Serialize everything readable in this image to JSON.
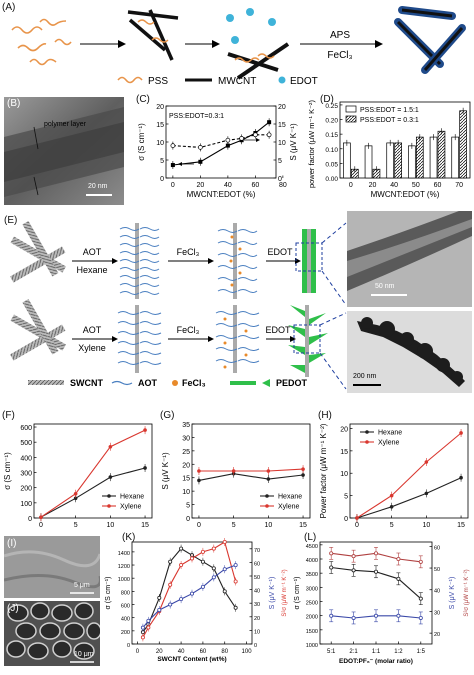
{
  "panel_labels": {
    "A": "(A)",
    "B": "(B)",
    "C": "(C)",
    "D": "(D)",
    "E": "(E)",
    "F": "(F)",
    "G": "(G)",
    "H": "(H)",
    "I": "(I)",
    "J": "(J)",
    "K": "(K)",
    "L": "(L)"
  },
  "panelA": {
    "arrow_top": "APS",
    "arrow_bottom": "FeCl₃",
    "legend": [
      "PSS",
      "MWCNT",
      "EDOT"
    ]
  },
  "panelB": {
    "layer_label": "polymer layer",
    "scale_bar": "20 nm"
  },
  "panelE": {
    "row1": {
      "step1": "AOT",
      "step1_solvent": "Hexane",
      "step2": "FeCl₃",
      "step3": "EDOT",
      "scale_bar": "50 nm"
    },
    "row2": {
      "step1": "AOT",
      "step1_solvent": "Xylene",
      "step2": "FeCl₃",
      "step3": "EDOT",
      "scale_bar": "200 nm"
    },
    "legend": [
      "SWCNT",
      "AOT",
      "FeCl₃",
      "PEDOT"
    ]
  },
  "panelI": {
    "scale_bar": "5 μm"
  },
  "panelJ": {
    "scale_bar": "10 μm"
  },
  "chart_data": [
    {
      "id": "C",
      "type": "line",
      "annotation": "PSS:EDOT=0.3:1",
      "xlabel": "MWCNT:EDOT (%)",
      "ylabel": "σ (S cm⁻¹)",
      "y2label": "S (μV K⁻¹)",
      "x_ticks": [
        0,
        20,
        40,
        60,
        80
      ],
      "y_ticks": [
        0,
        5,
        10,
        15,
        20
      ],
      "y2_ticks": [
        0,
        5,
        10,
        15,
        20
      ],
      "xlim": [
        -5,
        75
      ],
      "ylim": [
        0,
        20
      ],
      "y2lim": [
        0,
        20
      ],
      "series": [
        {
          "axis": "left",
          "style": "solid-filled",
          "x": [
            0,
            20,
            40,
            50,
            60,
            70
          ],
          "values": [
            3.6,
            4.5,
            9.0,
            10.5,
            12.5,
            15.5
          ]
        },
        {
          "axis": "right",
          "style": "dashed-open",
          "x": [
            0,
            20,
            40,
            50,
            60,
            70
          ],
          "values": [
            9.0,
            8.5,
            10.5,
            11.0,
            12.0,
            12.0
          ]
        }
      ]
    },
    {
      "id": "D",
      "type": "bar",
      "xlabel": "MWCNT:EDOT (%)",
      "ylabel": "power factor (μW m⁻¹ K⁻²)",
      "categories": [
        "0",
        "20",
        "40",
        "50",
        "60",
        "70"
      ],
      "y_ticks": [
        0.0,
        0.05,
        0.1,
        0.15,
        0.2,
        0.25
      ],
      "ylim": [
        0,
        0.26
      ],
      "series": [
        {
          "name": "PSS:EDOT = 1.5:1",
          "values": [
            0.12,
            0.11,
            0.12,
            0.11,
            0.14,
            0.14
          ]
        },
        {
          "name": "PSS:EDOT = 0.3:1",
          "values": [
            0.03,
            0.03,
            0.12,
            0.14,
            0.16,
            0.23
          ]
        }
      ]
    },
    {
      "id": "F",
      "type": "line",
      "xlabel": "",
      "ylabel": "σ (S cm⁻¹)",
      "x_ticks": [
        0,
        5,
        10,
        15
      ],
      "y_ticks": [
        0,
        100,
        200,
        300,
        400,
        500,
        600
      ],
      "xlim": [
        -1,
        16
      ],
      "ylim": [
        0,
        620
      ],
      "series": [
        {
          "name": "Hexane",
          "color": "#222222",
          "x": [
            0,
            5,
            10,
            15
          ],
          "values": [
            5,
            130,
            270,
            330
          ]
        },
        {
          "name": "Xylene",
          "color": "#d9372f",
          "x": [
            0,
            5,
            10,
            15
          ],
          "values": [
            5,
            160,
            470,
            580
          ]
        }
      ]
    },
    {
      "id": "G",
      "type": "line",
      "xlabel": "",
      "ylabel": "S (μV K⁻¹)",
      "x_ticks": [
        0,
        5,
        10,
        15
      ],
      "y_ticks": [
        0,
        5,
        10,
        15,
        20,
        25,
        30,
        35
      ],
      "xlim": [
        -1,
        16
      ],
      "ylim": [
        0,
        35
      ],
      "series": [
        {
          "name": "Hexane",
          "color": "#222222",
          "x": [
            0,
            5,
            10,
            15
          ],
          "values": [
            14,
            16.5,
            14.5,
            16
          ]
        },
        {
          "name": "Xylene",
          "color": "#d9372f",
          "x": [
            0,
            5,
            10,
            15
          ],
          "values": [
            17.5,
            17.5,
            17.5,
            18.2
          ]
        }
      ]
    },
    {
      "id": "H",
      "type": "line",
      "xlabel": "",
      "ylabel": "Power factor (μW m⁻¹ K⁻²)",
      "x_ticks": [
        0,
        5,
        10,
        15
      ],
      "y_ticks": [
        0,
        5,
        10,
        15,
        20
      ],
      "xlim": [
        -1,
        16
      ],
      "ylim": [
        0,
        21
      ],
      "series": [
        {
          "name": "Hexane",
          "color": "#222222",
          "x": [
            0,
            5,
            10,
            15
          ],
          "values": [
            0,
            2.5,
            5.5,
            9
          ]
        },
        {
          "name": "Xylene",
          "color": "#d9372f",
          "x": [
            0,
            5,
            10,
            15
          ],
          "values": [
            0,
            5,
            12.5,
            19
          ]
        }
      ]
    },
    {
      "id": "K",
      "type": "line",
      "xlabel": "SWCNT Content (wt%)",
      "ylabel": "σ (S cm⁻¹)",
      "y2label": "S (μV K⁻¹)",
      "y3label": "S²σ (μW m⁻¹ K⁻²)",
      "x_ticks": [
        0,
        20,
        40,
        60,
        80,
        100
      ],
      "y_ticks": [
        0,
        200,
        400,
        600,
        800,
        1000,
        1200,
        1400
      ],
      "y2_ticks": [
        0,
        10,
        20,
        30,
        40,
        50,
        60,
        70
      ],
      "xlim": [
        -5,
        105
      ],
      "ylim": [
        0,
        1550
      ],
      "y2lim": [
        0,
        75
      ],
      "series": [
        {
          "name": "σ",
          "axis": "left",
          "color": "#222222",
          "x": [
            5,
            10,
            20,
            30,
            40,
            50,
            60,
            70,
            80,
            90
          ],
          "values": [
            180,
            300,
            700,
            1250,
            1450,
            1350,
            1250,
            1150,
            800,
            550
          ]
        },
        {
          "name": "S²σ",
          "axis": "left",
          "color": "#d9372f",
          "x": [
            5,
            10,
            20,
            30,
            40,
            50,
            60,
            70,
            80,
            90
          ],
          "values": [
            100,
            250,
            500,
            900,
            1200,
            1300,
            1400,
            1450,
            1550,
            950
          ]
        },
        {
          "name": "S",
          "axis": "right",
          "color": "#3a48a8",
          "x": [
            5,
            10,
            20,
            30,
            40,
            50,
            60,
            70,
            80,
            90
          ],
          "values": [
            12,
            17,
            25,
            29,
            33,
            37,
            42,
            49,
            55,
            58
          ]
        }
      ]
    },
    {
      "id": "L",
      "type": "line",
      "xlabel": "EDOT:PF₆⁻ (molar ratio)",
      "ylabel": "σ (S cm⁻¹)",
      "y2label": "S (μV K⁻¹)",
      "y3label": "S²σ (μW m⁻¹ K⁻²)",
      "categories": [
        "5:1",
        "2:1",
        "1:1",
        "1:2",
        "1:5"
      ],
      "y_ticks": [
        1000,
        1500,
        2000,
        2500,
        3000,
        3500,
        4000,
        4500
      ],
      "y2_ticks": [
        20,
        30,
        40,
        50,
        60
      ],
      "ylim": [
        1000,
        4600
      ],
      "y2lim": [
        15,
        62
      ],
      "series": [
        {
          "name": "S²σ",
          "axis": "left",
          "color": "#b04040",
          "values": [
            4200,
            4100,
            4200,
            4000,
            3900
          ]
        },
        {
          "name": "σ",
          "axis": "left",
          "color": "#222222",
          "values": [
            3700,
            3600,
            3550,
            3300,
            2600
          ]
        },
        {
          "name": "S",
          "axis": "right",
          "color": "#3a48a8",
          "values": [
            28,
            27,
            28,
            28,
            27
          ]
        }
      ]
    }
  ]
}
